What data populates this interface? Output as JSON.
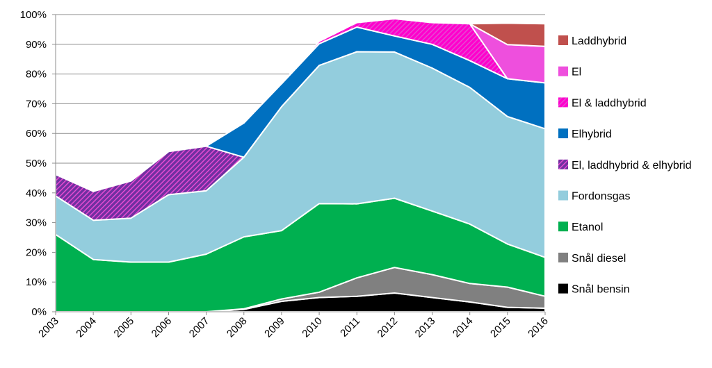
{
  "chart_data": {
    "type": "area",
    "stacked": true,
    "x": [
      "2003",
      "2004",
      "2005",
      "2006",
      "2007",
      "2008",
      "2009",
      "2010",
      "2011",
      "2012",
      "2013",
      "2014",
      "2015",
      "2016"
    ],
    "ylim": [
      0,
      100
    ],
    "yticks": [
      "0%",
      "10%",
      "20%",
      "30%",
      "40%",
      "50%",
      "60%",
      "70%",
      "80%",
      "90%",
      "100%"
    ],
    "grid": true,
    "legend_position": "right",
    "series": [
      {
        "name": "Snål bensin",
        "color": "#000000",
        "pattern": false,
        "values": [
          0,
          0,
          0,
          0,
          0,
          0.8,
          3.5,
          4.8,
          5.2,
          6.3,
          4.8,
          3.3,
          1.5,
          1.2
        ]
      },
      {
        "name": "Snål diesel",
        "color": "#808080",
        "pattern": false,
        "values": [
          0,
          0,
          0,
          0,
          0,
          0.2,
          0.8,
          1.8,
          6.2,
          8.6,
          7.7,
          6.2,
          6.8,
          4.0
        ]
      },
      {
        "name": "Etanol",
        "color": "#00b050",
        "pattern": false,
        "values": [
          26.0,
          17.6,
          16.7,
          16.7,
          19.4,
          24.2,
          23.0,
          29.8,
          24.9,
          23.3,
          21.4,
          20.0,
          14.5,
          13.1
        ]
      },
      {
        "name": "Fordonsgas",
        "color": "#93cddd",
        "pattern": false,
        "values": [
          13.0,
          13.2,
          14.8,
          22.7,
          21.3,
          26.8,
          41.7,
          46.5,
          51.2,
          49.2,
          48.1,
          46.0,
          42.9,
          43.3
        ]
      },
      {
        "name": "El, laddhybrid & elhybrid",
        "color": "#7030a0",
        "pattern": true,
        "pattern_color": "#e64bd2",
        "values": [
          7.2,
          9.7,
          12.5,
          14.5,
          15.0,
          0,
          0,
          0,
          0,
          0,
          0,
          0,
          0,
          0
        ]
      },
      {
        "name": "Elhybrid",
        "color": "#0070c0",
        "pattern": false,
        "values": [
          0,
          0,
          0,
          0,
          0,
          11.5,
          7.7,
          7.3,
          8.3,
          5.4,
          8.0,
          9.0,
          12.7,
          15.4
        ]
      },
      {
        "name": "El & laddhybrid",
        "color": "#ff00cc",
        "pattern": true,
        "pattern_color": "#e54ad3",
        "values": [
          0,
          0,
          0,
          0,
          0,
          0,
          0,
          0.8,
          1.5,
          5.8,
          7.3,
          12.4,
          0,
          0
        ]
      },
      {
        "name": "El",
        "color": "#ee4fdd",
        "pattern": false,
        "values": [
          0,
          0,
          0,
          0,
          0,
          0,
          0,
          0,
          0,
          0,
          0,
          0,
          11.5,
          12.3
        ]
      },
      {
        "name": "Laddhybrid",
        "color": "#c0504d",
        "pattern": false,
        "values": [
          0,
          0,
          0,
          0,
          0,
          0,
          0,
          0,
          0,
          0,
          0,
          0,
          7.2,
          7.6
        ]
      }
    ]
  }
}
